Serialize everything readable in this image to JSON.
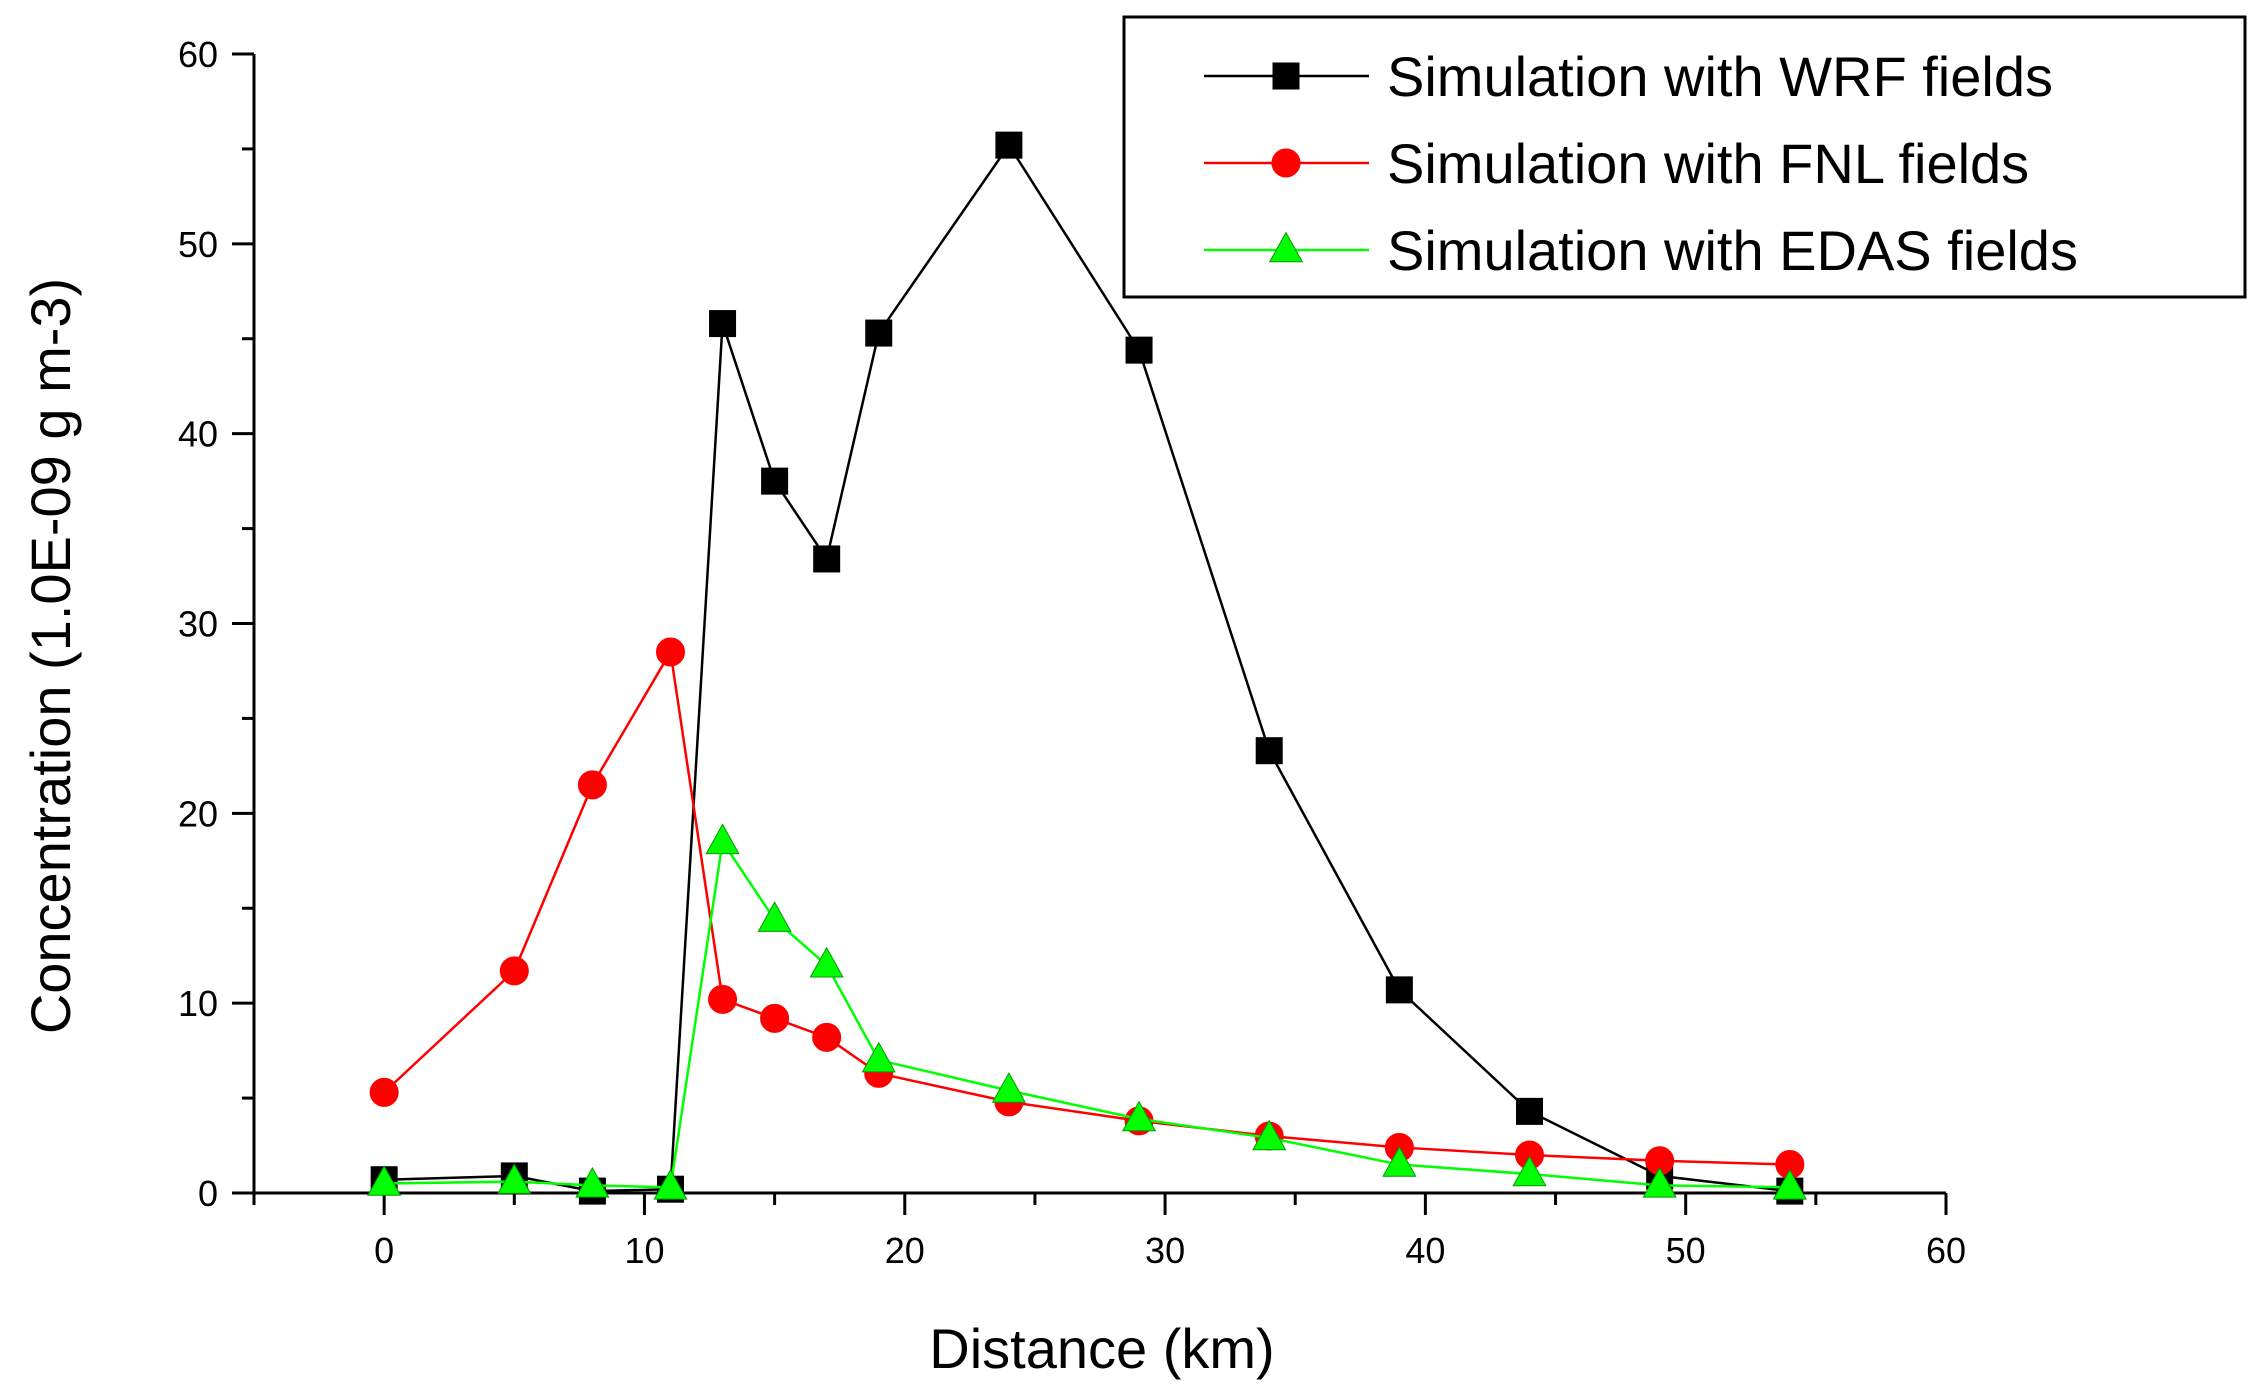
{
  "chart_data": {
    "type": "line",
    "title": "",
    "xlabel": "Distance (km)",
    "ylabel": "Concentration (1.0E-09 g m-3)",
    "xlim": [
      -5,
      60
    ],
    "ylim": [
      0,
      60
    ],
    "x_ticks": [
      0,
      10,
      20,
      30,
      40,
      50,
      60
    ],
    "y_ticks": [
      0,
      10,
      20,
      30,
      40,
      50,
      60
    ],
    "x_tick_labels": [
      "0",
      "10",
      "20",
      "30",
      "40",
      "50",
      "60"
    ],
    "y_tick_labels": [
      "0",
      "10",
      "20",
      "30",
      "40",
      "50",
      "60"
    ],
    "grid": false,
    "legend_position": "top-right",
    "x": [
      0,
      5,
      8,
      11,
      13,
      15,
      17,
      19,
      24,
      29,
      34,
      39,
      44,
      49,
      54
    ],
    "series": [
      {
        "name": "Simulation with WRF fields",
        "color": "#000000",
        "marker": "square",
        "values": [
          0.7,
          0.9,
          0.1,
          0.2,
          45.8,
          37.5,
          33.4,
          45.3,
          55.2,
          44.4,
          23.3,
          10.7,
          4.3,
          0.9,
          0.1
        ]
      },
      {
        "name": "Simulation with FNL fields",
        "color": "#ff0000",
        "marker": "circle",
        "values": [
          5.3,
          11.7,
          21.5,
          28.5,
          10.2,
          9.2,
          8.2,
          6.3,
          4.8,
          3.8,
          3.0,
          2.4,
          2.0,
          1.7,
          1.5
        ]
      },
      {
        "name": "Simulation with EDAS fields",
        "color": "#00ff00",
        "marker": "triangle",
        "values": [
          0.5,
          0.6,
          0.4,
          0.3,
          18.5,
          14.4,
          12.0,
          7.0,
          5.4,
          3.9,
          2.9,
          1.5,
          1.0,
          0.4,
          0.3
        ]
      }
    ]
  }
}
